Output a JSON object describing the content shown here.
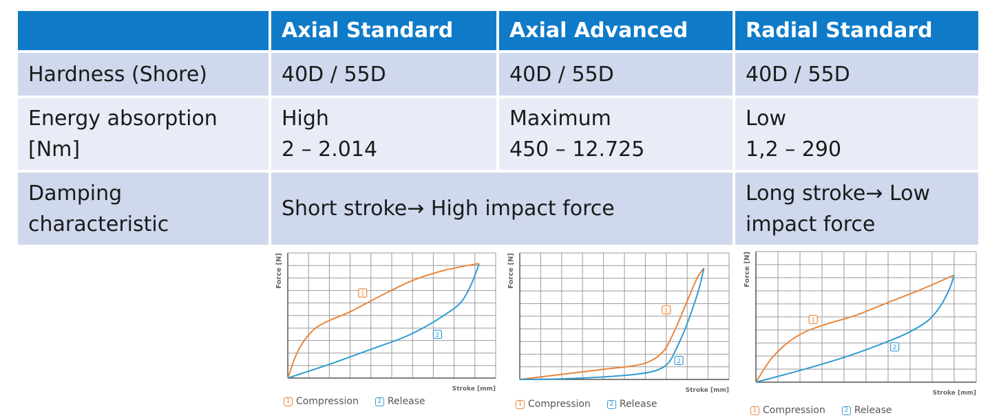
{
  "table": {
    "headers": [
      "",
      "Axial Standard",
      "Axial Advanced",
      "Radial Standard"
    ],
    "rows": [
      {
        "label": "Hardness (Shore)",
        "values": [
          "40D / 55D",
          "40D / 55D",
          "40D / 55D"
        ]
      },
      {
        "label": "Energy absorption\n[Nm]",
        "values": [
          "High\n2 – 2.014",
          "Maximum\n450 – 12.725",
          "Low\n1,2 – 290"
        ]
      },
      {
        "label": "Damping\ncharacteristic",
        "values": [
          "Short stroke→ High impact force",
          "Long stroke→ Low\nimpact force"
        ]
      }
    ]
  },
  "colors": {
    "header_bg": "#0f7bc8",
    "row_dark": "#cfd8ec",
    "row_light": "#e8ecf6",
    "compression": "#e8853a",
    "release": "#2f9bd0",
    "grid": "#9a9a9a"
  },
  "chart_data": [
    {
      "type": "line",
      "panel": "Axial Standard",
      "xlabel": "Stroke [mm]",
      "ylabel": "Force [N]",
      "xlim": [
        0,
        10
      ],
      "ylim": [
        0,
        10
      ],
      "grid": true,
      "legend": "bottom",
      "series": [
        {
          "name": "Compression",
          "marker": "1",
          "label_at": [
            3.6,
            6.8
          ],
          "x": [
            0,
            0.5,
            1.2,
            2,
            3,
            4.5,
            6,
            7.5,
            9,
            9.2
          ],
          "y": [
            0,
            2.2,
            3.8,
            4.6,
            5.3,
            6.6,
            7.8,
            8.6,
            9.1,
            9.1
          ]
        },
        {
          "name": "Release",
          "marker": "2",
          "label_at": [
            7.2,
            3.5
          ],
          "x": [
            0,
            2,
            4,
            5.5,
            6.5,
            7.5,
            8.3,
            8.8,
            9.2
          ],
          "y": [
            0,
            1.1,
            2.3,
            3.2,
            4,
            5,
            6,
            7.4,
            9.1
          ]
        }
      ]
    },
    {
      "type": "line",
      "panel": "Axial Advanced",
      "xlabel": "Stroke [mm]",
      "ylabel": "Force [N]",
      "xlim": [
        0,
        10
      ],
      "ylim": [
        0,
        10
      ],
      "grid": true,
      "legend": "bottom",
      "series": [
        {
          "name": "Compression",
          "marker": "1",
          "label_at": [
            7,
            5.5
          ],
          "x": [
            0,
            2,
            4,
            5.5,
            6.3,
            6.9,
            7.3,
            7.7,
            8.1,
            8.5,
            8.8
          ],
          "y": [
            0,
            0.4,
            0.8,
            1.1,
            1.5,
            2.3,
            3.5,
            5,
            6.6,
            8.1,
            8.8
          ]
        },
        {
          "name": "Release",
          "marker": "2",
          "label_at": [
            7.6,
            1.5
          ],
          "x": [
            0,
            2,
            4,
            5.5,
            6.5,
            7.1,
            7.5,
            7.9,
            8.3,
            8.6,
            8.8
          ],
          "y": [
            0,
            0.05,
            0.2,
            0.4,
            0.7,
            1.3,
            2.5,
            4,
            5.8,
            7.4,
            8.8
          ]
        }
      ]
    },
    {
      "type": "line",
      "panel": "Radial Standard",
      "xlabel": "Stroke [mm]",
      "ylabel": "Force [N]",
      "xlim": [
        0,
        10
      ],
      "ylim": [
        0,
        10
      ],
      "grid": true,
      "legend": "bottom",
      "series": [
        {
          "name": "Compression",
          "marker": "1",
          "label_at": [
            2.6,
            4.8
          ],
          "x": [
            0,
            0.7,
            1.5,
            2.3,
            3.3,
            4.5,
            6,
            7.5,
            9
          ],
          "y": [
            0,
            1.8,
            3.1,
            3.9,
            4.5,
            5.1,
            6.1,
            7.1,
            8.2
          ]
        },
        {
          "name": "Release",
          "marker": "2",
          "label_at": [
            6.3,
            2.7
          ],
          "x": [
            0,
            2,
            4,
            5.5,
            6.8,
            7.8,
            8.4,
            8.8,
            9
          ],
          "y": [
            0,
            0.9,
            1.9,
            2.8,
            3.7,
            4.7,
            5.9,
            7.2,
            8.2
          ]
        }
      ]
    }
  ]
}
